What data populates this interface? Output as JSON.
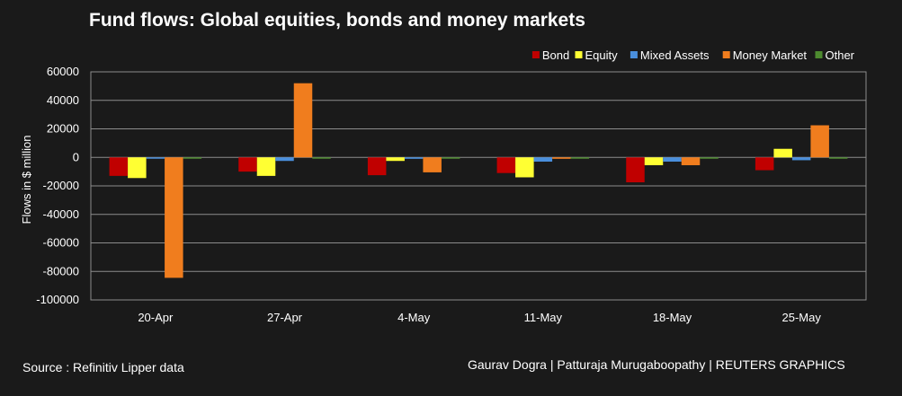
{
  "title": "Fund flows: Global equities, bonds and money markets",
  "source": "Source : Refinitiv Lipper data",
  "credit": "Gaurav Dogra | Patturaja Murugaboopathy | REUTERS GRAPHICS",
  "chart_data": {
    "type": "bar",
    "title": "Fund flows: Global equities, bonds and money markets",
    "xlabel": "",
    "ylabel": "Flows in $ million",
    "ylim": [
      -100000,
      60000
    ],
    "yticks": [
      60000,
      40000,
      20000,
      0,
      -20000,
      -40000,
      -60000,
      -80000,
      -100000
    ],
    "ytick_labels": [
      "60000",
      "40000",
      "20000",
      "0",
      "-20000",
      "-40000",
      "-60000",
      "-80000",
      "-100000"
    ],
    "grid": true,
    "legend_position": "top-right",
    "categories": [
      "20-Apr",
      "27-Apr",
      "4-May",
      "11-May",
      "18-May",
      "25-May"
    ],
    "series": [
      {
        "name": "Bond",
        "color": "#c00000",
        "values": [
          -13000,
          -10000,
          -12500,
          -11000,
          -17500,
          -9000
        ]
      },
      {
        "name": "Equity",
        "color": "#ffff33",
        "values": [
          -14500,
          -13000,
          -2500,
          -14000,
          -5500,
          6000
        ]
      },
      {
        "name": "Mixed Assets",
        "color": "#4a8fdc",
        "values": [
          -500,
          -2500,
          -1000,
          -3000,
          -3000,
          -2000
        ]
      },
      {
        "name": "Money Market",
        "color": "#f07d1e",
        "values": [
          -84500,
          52000,
          -10500,
          -1000,
          -5500,
          22500
        ]
      },
      {
        "name": "Other",
        "color": "#4d8a2f",
        "values": [
          -500,
          -500,
          -500,
          -500,
          -500,
          -500
        ]
      }
    ]
  }
}
